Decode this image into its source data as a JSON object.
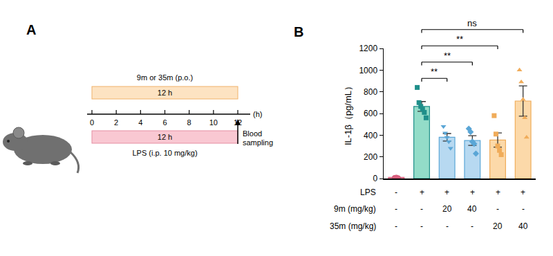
{
  "panel_labels": [
    "A",
    "B"
  ],
  "diagram": {
    "timeline": {
      "ticks": [
        0,
        2,
        4,
        6,
        8,
        10,
        12
      ],
      "unit": "(h)"
    },
    "bars": [
      {
        "label": "9m or 35m (p.o.)",
        "text": "12 h",
        "start": 0,
        "end": 12,
        "color": "#fde3c2"
      },
      {
        "label": "LPS (i.p. 10 mg/kg)",
        "text": "12 h",
        "start": 0,
        "end": 12,
        "color": "#f9c8d2"
      }
    ],
    "arrow": {
      "at": 12,
      "label": [
        "Blood",
        "sampling"
      ]
    }
  },
  "chart_data": {
    "type": "bar",
    "y_label": "IL-1β（pg/mL）",
    "categories": [
      null,
      null,
      null,
      null,
      null,
      null
    ],
    "values": [
      10,
      665,
      380,
      350,
      355,
      715
    ],
    "errors": [
      2,
      45,
      35,
      45,
      65,
      140
    ],
    "points": [
      [
        10,
        12,
        8
      ],
      [
        840,
        700,
        665,
        640,
        610,
        560
      ],
      [
        480,
        420,
        380,
        340,
        280
      ],
      [
        460,
        430,
        340,
        320,
        230
      ],
      [
        580,
        410,
        300,
        260,
        220
      ],
      [
        1000,
        890,
        730,
        560,
        380
      ]
    ],
    "colors": [
      "#f7b3c3",
      "#93dcc8",
      "#b7d9f1",
      "#b7d9f1",
      "#fcd9a9",
      "#fcd9a9"
    ],
    "ylim": [
      0,
      1200
    ],
    "yticks": [
      0,
      200,
      400,
      600,
      800,
      1000,
      1200
    ],
    "grid": false,
    "comparisons": [
      {
        "from": 1,
        "to": 2,
        "label": "**"
      },
      {
        "from": 1,
        "to": 3,
        "label": "**"
      },
      {
        "from": 1,
        "to": 4,
        "label": "**"
      },
      {
        "from": 1,
        "to": 5,
        "label": "ns"
      }
    ],
    "conditions": [
      {
        "label": "LPS",
        "values": [
          "-",
          "+",
          "+",
          "+",
          "+",
          "+"
        ]
      },
      {
        "label": "9m (mg/kg)",
        "values": [
          "-",
          "-",
          "20",
          "40",
          "-",
          "-"
        ]
      },
      {
        "label": "35m (mg/kg)",
        "values": [
          "-",
          "-",
          "-",
          "-",
          "20",
          "40"
        ]
      }
    ]
  }
}
